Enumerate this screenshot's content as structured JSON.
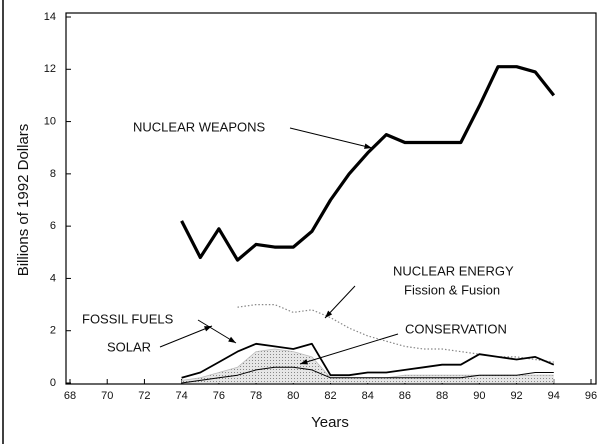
{
  "chart_data": {
    "type": "line",
    "x_label": "Years",
    "y_label": "Billions of 1992 Dollars",
    "x": [
      74,
      75,
      76,
      77,
      78,
      79,
      80,
      81,
      82,
      83,
      84,
      85,
      86,
      87,
      88,
      89,
      90,
      91,
      92,
      93,
      94
    ],
    "series": [
      {
        "name": "NUCLEAR WEAPONS",
        "color": "#000000",
        "values": [
          6.2,
          4.8,
          5.9,
          4.7,
          5.3,
          5.2,
          5.2,
          5.8,
          7.0,
          8.0,
          8.8,
          9.5,
          9.2,
          9.2,
          9.2,
          9.2,
          10.6,
          12.1,
          12.1,
          11.9,
          11.0
        ]
      },
      {
        "name": "NUCLEAR ENERGY",
        "color": "#888888",
        "values": [
          null,
          null,
          null,
          2.9,
          3.0,
          3.0,
          2.7,
          2.8,
          2.5,
          2.1,
          1.8,
          1.6,
          1.4,
          1.3,
          1.3,
          1.2,
          1.1,
          1.0,
          1.0,
          0.9,
          0.8
        ]
      },
      {
        "name": "FOSSIL FUELS",
        "color": "#000000",
        "values": [
          0.2,
          0.4,
          0.8,
          1.2,
          1.5,
          1.4,
          1.3,
          1.5,
          0.3,
          0.3,
          0.4,
          0.4,
          0.5,
          0.6,
          0.7,
          0.7,
          1.1,
          1.0,
          0.9,
          1.0,
          0.7
        ]
      },
      {
        "name": "SOLAR",
        "color": "#bbbbbb",
        "values": [
          0.1,
          0.2,
          0.4,
          0.6,
          1.2,
          1.3,
          1.2,
          1.0,
          0.2,
          0.2,
          0.2,
          0.2,
          0.3,
          0.3,
          0.3,
          0.3,
          0.3,
          0.3,
          0.3,
          0.3,
          0.3
        ]
      },
      {
        "name": "CONSERVATION",
        "color": "#000000",
        "values": [
          0,
          0.1,
          0.2,
          0.3,
          0.5,
          0.6,
          0.6,
          0.5,
          0.2,
          0.2,
          0.2,
          0.2,
          0.2,
          0.2,
          0.2,
          0.2,
          0.3,
          0.3,
          0.3,
          0.4,
          0.4
        ]
      }
    ],
    "annotations": [
      "Fission & Fusion"
    ],
    "xlim": [
      68,
      96
    ],
    "xticks": [
      68,
      70,
      72,
      74,
      76,
      78,
      80,
      82,
      84,
      86,
      88,
      90,
      92,
      94,
      96
    ],
    "ylim": [
      0,
      14
    ],
    "yticks": [
      0,
      2,
      4,
      6,
      8,
      10,
      12,
      14
    ]
  }
}
